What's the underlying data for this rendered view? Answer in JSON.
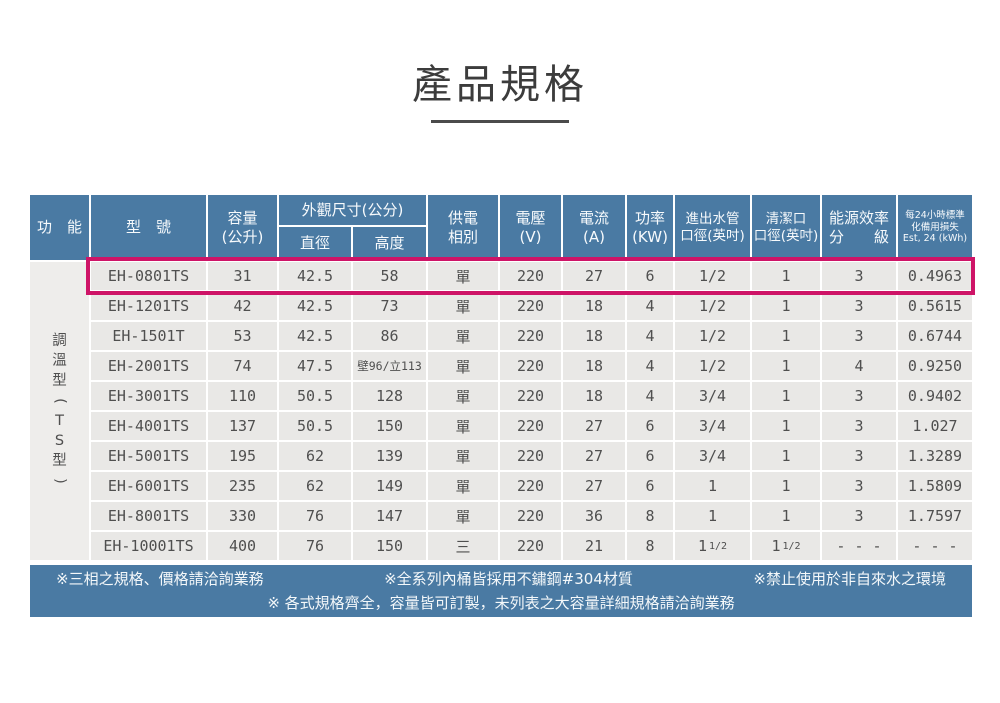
{
  "colors": {
    "header_blue": "#4a7aa3",
    "highlight_pink": "#ce1467",
    "cell_gray": "#e9e8e6"
  },
  "page": {
    "title": "產品規格"
  },
  "table": {
    "headers": {
      "function": "功　能",
      "model": "型　號",
      "capacity_line1": "容量",
      "capacity_line2": "(公升)",
      "dimensions_group": "外觀尺寸(公分)",
      "diameter": "直徑",
      "height": "高度",
      "phase_line1": "供電",
      "phase_line2": "相別",
      "voltage_line1": "電壓",
      "voltage_line2": "(V)",
      "current_line1": "電流",
      "current_line2": "(A)",
      "power_line1": "功率",
      "power_line2": "(KW)",
      "inlet_line1": "進出水管",
      "inlet_line2": "口徑(英吋)",
      "clean_line1": "清潔口",
      "clean_line2": "口徑(英吋)",
      "energy_line1": "能源效率",
      "energy_line2": "分　　級",
      "standby_line1": "每24小時標準",
      "standby_line2": "化備用損失",
      "standby_line3": "Est, 24 (kWh)"
    },
    "function_group_label": "調溫型(TS型)",
    "rows": [
      {
        "model": "EH-0801TS",
        "capacity": "31",
        "diameter": "42.5",
        "height": "58",
        "phase": "單",
        "voltage": "220",
        "current": "27",
        "power": "6",
        "inlet": "1/2",
        "clean": "1",
        "energy": "3",
        "standby": "0.4963",
        "highlight": true
      },
      {
        "model": "EH-1201TS",
        "capacity": "42",
        "diameter": "42.5",
        "height": "73",
        "phase": "單",
        "voltage": "220",
        "current": "18",
        "power": "4",
        "inlet": "1/2",
        "clean": "1",
        "energy": "3",
        "standby": "0.5615"
      },
      {
        "model": "EH-1501T",
        "capacity": "53",
        "diameter": "42.5",
        "height": "86",
        "phase": "單",
        "voltage": "220",
        "current": "18",
        "power": "4",
        "inlet": "1/2",
        "clean": "1",
        "energy": "3",
        "standby": "0.6744"
      },
      {
        "model": "EH-2001TS",
        "capacity": "74",
        "diameter": "47.5",
        "height": "壁96/立113",
        "phase": "單",
        "voltage": "220",
        "current": "18",
        "power": "4",
        "inlet": "1/2",
        "clean": "1",
        "energy": "4",
        "standby": "0.9250"
      },
      {
        "model": "EH-3001TS",
        "capacity": "110",
        "diameter": "50.5",
        "height": "128",
        "phase": "單",
        "voltage": "220",
        "current": "18",
        "power": "4",
        "inlet": "3/4",
        "clean": "1",
        "energy": "3",
        "standby": "0.9402"
      },
      {
        "model": "EH-4001TS",
        "capacity": "137",
        "diameter": "50.5",
        "height": "150",
        "phase": "單",
        "voltage": "220",
        "current": "27",
        "power": "6",
        "inlet": "3/4",
        "clean": "1",
        "energy": "3",
        "standby": "1.027"
      },
      {
        "model": "EH-5001TS",
        "capacity": "195",
        "diameter": "62",
        "height": "139",
        "phase": "單",
        "voltage": "220",
        "current": "27",
        "power": "6",
        "inlet": "3/4",
        "clean": "1",
        "energy": "3",
        "standby": "1.3289"
      },
      {
        "model": "EH-6001TS",
        "capacity": "235",
        "diameter": "62",
        "height": "149",
        "phase": "單",
        "voltage": "220",
        "current": "27",
        "power": "6",
        "inlet": "1",
        "clean": "1",
        "energy": "3",
        "standby": "1.5809"
      },
      {
        "model": "EH-8001TS",
        "capacity": "330",
        "diameter": "76",
        "height": "147",
        "phase": "單",
        "voltage": "220",
        "current": "36",
        "power": "8",
        "inlet": "1",
        "clean": "1",
        "energy": "3",
        "standby": "1.7597"
      },
      {
        "model": "EH-10001TS",
        "capacity": "400",
        "diameter": "76",
        "height": "150",
        "phase": "三",
        "voltage": "220",
        "current": "21",
        "power": "8",
        "inlet": "1 1/2",
        "clean": "1 1/2",
        "energy": "- - -",
        "standby": "- - -"
      }
    ]
  },
  "notes": {
    "note1": "※三相之規格、價格請洽詢業務",
    "note2": "※全系列內桶皆採用不鏽鋼#304材質",
    "note3": "※禁止使用於非自來水之環境",
    "note4": "※ 各式規格齊全，容量皆可訂製，未列表之大容量詳細規格請洽詢業務"
  }
}
